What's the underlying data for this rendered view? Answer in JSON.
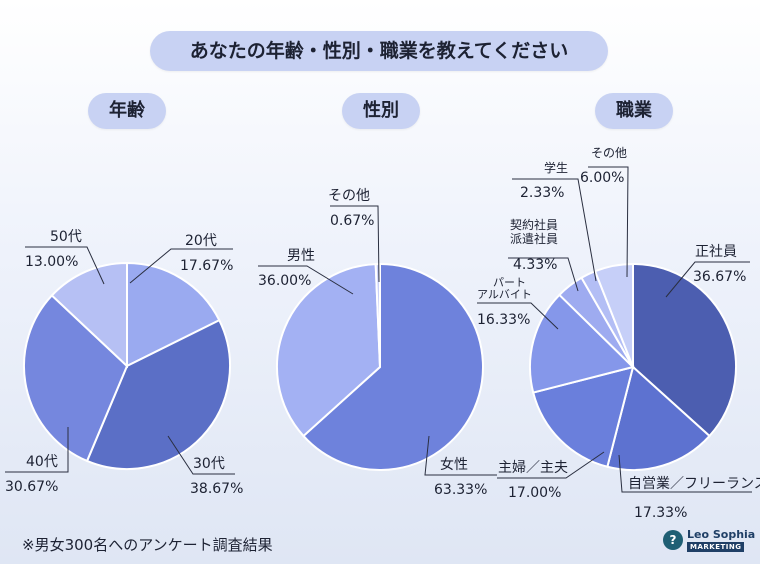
{
  "title": "あなたの年齢・性別・職業を教えてください",
  "sections": {
    "age": "年齢",
    "gender": "性別",
    "job": "職業"
  },
  "note": "※男女300名へのアンケート調査結果",
  "logo": {
    "name": "Leo Sophia",
    "sub": "MARKETING"
  },
  "chart_data": [
    {
      "type": "pie",
      "title": "年齢",
      "slices": [
        {
          "label": "20代",
          "value": 17.67,
          "pct": "17.67%",
          "color": "#9aaaf0"
        },
        {
          "label": "30代",
          "value": 38.67,
          "pct": "38.67%",
          "color": "#5b6fc6"
        },
        {
          "label": "40代",
          "value": 30.67,
          "pct": "30.67%",
          "color": "#7587de"
        },
        {
          "label": "50代",
          "value": 13.0,
          "pct": "13.00%",
          "color": "#b6c0f4"
        }
      ]
    },
    {
      "type": "pie",
      "title": "性別",
      "slices": [
        {
          "label": "女性",
          "value": 63.33,
          "pct": "63.33%",
          "color": "#6e82dc"
        },
        {
          "label": "男性",
          "value": 36.0,
          "pct": "36.00%",
          "color": "#a3b1f3"
        },
        {
          "label": "その他",
          "value": 0.67,
          "pct": "0.67%",
          "color": "#c9d1f7"
        }
      ]
    },
    {
      "type": "pie",
      "title": "職業",
      "slices": [
        {
          "label": "正社員",
          "value": 36.67,
          "pct": "36.67%",
          "color": "#4c5eb0"
        },
        {
          "label": "自営業／フリーランス",
          "value": 17.33,
          "pct": "17.33%",
          "color": "#5d72d0"
        },
        {
          "label": "主婦／主夫",
          "value": 17.0,
          "pct": "17.00%",
          "color": "#6a7fdc"
        },
        {
          "label": "パート アルバイト",
          "value": 16.33,
          "pct": "16.33%",
          "color": "#8597ea"
        },
        {
          "label": "契約社員 派遣社員",
          "value": 4.33,
          "pct": "4.33%",
          "color": "#9eabf0"
        },
        {
          "label": "学生",
          "value": 2.33,
          "pct": "2.33%",
          "color": "#b3bef5"
        },
        {
          "label": "その他",
          "value": 6.0,
          "pct": "6.00%",
          "color": "#c6cff8"
        }
      ]
    }
  ]
}
